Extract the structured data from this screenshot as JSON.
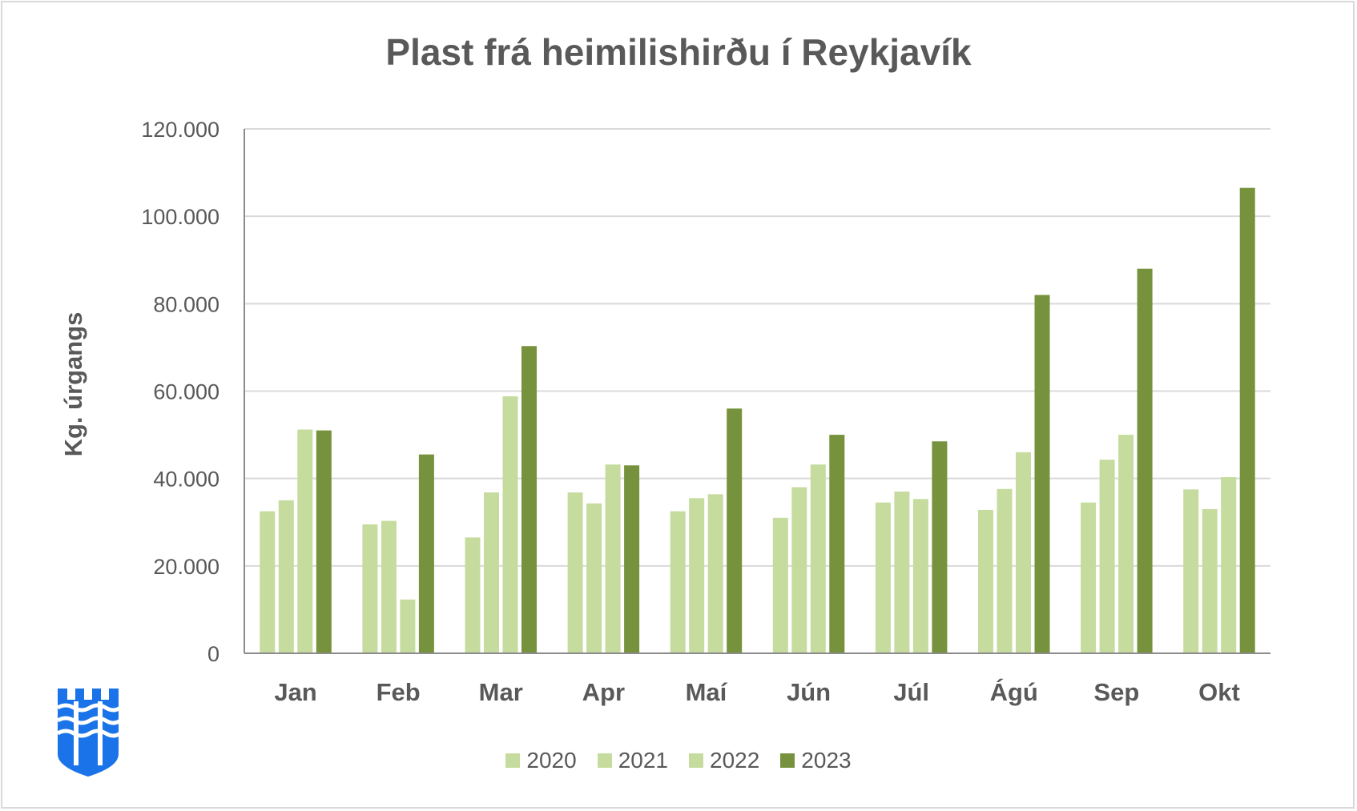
{
  "chart_data": {
    "type": "bar",
    "title": "Plast frá heimilishirðu í Reykjavík",
    "ylabel": "Kg. úrgangs",
    "xlabel": "",
    "ylim": [
      0,
      120000
    ],
    "yticks": [
      0,
      20000,
      40000,
      60000,
      80000,
      100000,
      120000
    ],
    "ytick_labels": [
      "0",
      "20.000",
      "40.000",
      "60.000",
      "80.000",
      "100.000",
      "120.000"
    ],
    "grid": true,
    "legend_position": "bottom",
    "categories": [
      "Jan",
      "Feb",
      "Mar",
      "Apr",
      "Maí",
      "Jún",
      "Júl",
      "Ágú",
      "Sep",
      "Okt"
    ],
    "series": [
      {
        "name": "2020",
        "color": "#c5dc9e",
        "values": [
          32500,
          29500,
          26500,
          36800,
          32500,
          31000,
          34500,
          32800,
          34500,
          37500
        ]
      },
      {
        "name": "2021",
        "color": "#c5dc9e",
        "values": [
          35000,
          30300,
          36800,
          34300,
          35500,
          38000,
          37000,
          37600,
          44300,
          33000
        ]
      },
      {
        "name": "2022",
        "color": "#c5dc9e",
        "values": [
          51200,
          12300,
          58800,
          43200,
          36400,
          43200,
          35300,
          46000,
          50000,
          40300
        ]
      },
      {
        "name": "2023",
        "color": "#76923c",
        "values": [
          51000,
          45500,
          70300,
          43000,
          56000,
          50000,
          48500,
          82000,
          88000,
          106500
        ]
      }
    ]
  }
}
